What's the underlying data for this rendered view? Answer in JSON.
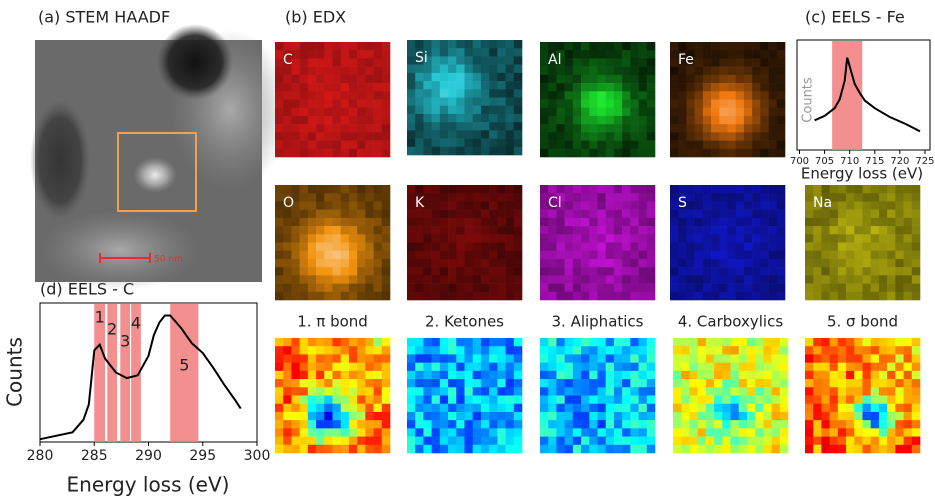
{
  "panels": {
    "a": {
      "label": "(a) STEM HAADF",
      "scale_bar": "50 nm"
    },
    "b": {
      "label": "(b) EDX",
      "maps": [
        "C",
        "Si",
        "Al",
        "Fe",
        "O",
        "K",
        "Cl",
        "S",
        "Na"
      ]
    },
    "c": {
      "label": "(c) EELS - Fe"
    },
    "d": {
      "label": "(d) EELS - C"
    },
    "bond_maps": [
      "1. π bond",
      "2. Ketones",
      "3. Aliphatics",
      "4. Carboxylics",
      "5. σ bond"
    ]
  },
  "chart_data": [
    {
      "type": "line",
      "x_label": "Energy loss (eV)",
      "y_label": "Counts",
      "x": [
        703,
        705,
        707,
        708,
        709,
        709.5,
        710,
        711,
        712,
        713,
        715,
        718,
        721,
        724
      ],
      "values": [
        0.27,
        0.31,
        0.38,
        0.46,
        0.63,
        0.84,
        0.76,
        0.6,
        0.52,
        0.45,
        0.38,
        0.3,
        0.24,
        0.17
      ],
      "xlim": [
        699.5,
        726
      ],
      "xticks": [
        700,
        705,
        710,
        715,
        720,
        725
      ],
      "ylim": [
        0,
        1
      ],
      "bands": [
        {
          "range": [
            706.5,
            712.5
          ]
        }
      ]
    },
    {
      "type": "line",
      "x_label": "Energy loss (eV)",
      "y_label": "Counts",
      "x": [
        280,
        283,
        284,
        284.5,
        285,
        285.5,
        286,
        287,
        288,
        289,
        290,
        290.5,
        291,
        291.5,
        292,
        293,
        294,
        295,
        296,
        297,
        298,
        298.5
      ],
      "values": [
        0.02,
        0.07,
        0.16,
        0.27,
        0.66,
        0.7,
        0.6,
        0.5,
        0.46,
        0.48,
        0.62,
        0.77,
        0.86,
        0.91,
        0.91,
        0.82,
        0.71,
        0.64,
        0.53,
        0.41,
        0.3,
        0.24
      ],
      "xlim": [
        280,
        300
      ],
      "xticks": [
        280,
        285,
        290,
        295,
        300
      ],
      "ylim": [
        0,
        1
      ],
      "bands": [
        {
          "label": "1",
          "range": [
            285,
            286
          ]
        },
        {
          "label": "2",
          "range": [
            286.2,
            287.1
          ]
        },
        {
          "label": "3",
          "range": [
            287.4,
            288.3
          ]
        },
        {
          "label": "4",
          "range": [
            288.4,
            289.3
          ]
        },
        {
          "label": "5",
          "range": [
            292,
            294.6
          ]
        }
      ]
    }
  ]
}
